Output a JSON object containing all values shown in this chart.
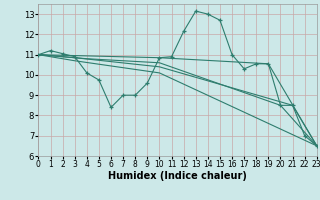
{
  "background_color": "#cce8e8",
  "grid_color": "#d4b8b8",
  "line_color": "#2e7d6e",
  "xlabel": "Humidex (Indice chaleur)",
  "xlim": [
    0,
    23
  ],
  "ylim": [
    6,
    13.5
  ],
  "xtick_labels": [
    "0",
    "1",
    "2",
    "3",
    "4",
    "5",
    "6",
    "7",
    "8",
    "9",
    "10",
    "11",
    "12",
    "13",
    "14",
    "15",
    "16",
    "17",
    "18",
    "19",
    "20",
    "21",
    "22",
    "23"
  ],
  "yticks": [
    6,
    7,
    8,
    9,
    10,
    11,
    12,
    13
  ],
  "series1": [
    [
      0,
      11.0
    ],
    [
      1,
      11.2
    ],
    [
      2,
      11.05
    ],
    [
      3,
      10.9
    ],
    [
      4,
      10.1
    ],
    [
      5,
      9.75
    ],
    [
      6,
      8.4
    ],
    [
      7,
      9.0
    ],
    [
      8,
      9.0
    ],
    [
      9,
      9.6
    ],
    [
      10,
      10.85
    ],
    [
      11,
      10.9
    ],
    [
      12,
      12.15
    ],
    [
      13,
      13.15
    ],
    [
      14,
      13.0
    ],
    [
      15,
      12.7
    ],
    [
      16,
      11.0
    ],
    [
      17,
      10.3
    ],
    [
      18,
      10.55
    ],
    [
      19,
      10.55
    ],
    [
      20,
      8.5
    ],
    [
      21,
      8.5
    ],
    [
      22,
      7.0
    ],
    [
      23,
      6.5
    ]
  ],
  "line2": [
    [
      0,
      11.0
    ],
    [
      10,
      10.85
    ],
    [
      19,
      10.55
    ],
    [
      23,
      6.5
    ]
  ],
  "line3": [
    [
      0,
      11.0
    ],
    [
      4,
      10.8
    ],
    [
      10,
      10.6
    ],
    [
      20,
      8.5
    ],
    [
      23,
      6.5
    ]
  ],
  "line4": [
    [
      0,
      11.0
    ],
    [
      3,
      10.85
    ],
    [
      10,
      10.4
    ],
    [
      21,
      8.5
    ],
    [
      23,
      6.5
    ]
  ],
  "line5": [
    [
      0,
      11.0
    ],
    [
      3,
      10.7
    ],
    [
      10,
      10.1
    ],
    [
      23,
      6.5
    ]
  ]
}
